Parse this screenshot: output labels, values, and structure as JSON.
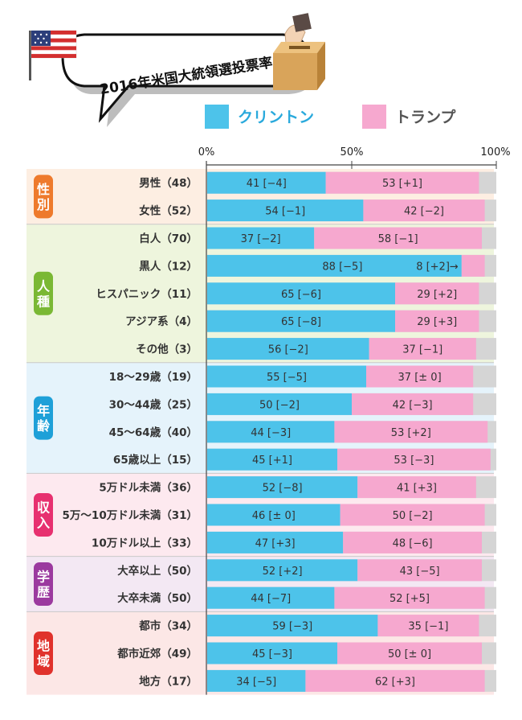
{
  "title": "2016年米国大統領選投票率",
  "legend": [
    {
      "name": "クリントン",
      "color": "#4dc3ea"
    },
    {
      "name": "トランプ",
      "color": "#f6a8cf"
    }
  ],
  "colors": {
    "clinton": "#4dc3ea",
    "trump": "#f6a8cf",
    "other": "#d5d5d5",
    "legend_clinton_text": "#29a9dc",
    "legend_trump_text": "#555555"
  },
  "chart_data": {
    "type": "bar",
    "orientation": "horizontal",
    "stacked": true,
    "title": "2016年米国大統領選投票率",
    "xlim": [
      0,
      100
    ],
    "xticks": [
      "0%",
      "50%",
      "100%"
    ],
    "groups": [
      {
        "name": "性別",
        "color": "#ee7a2c",
        "bg": "#fdeee2",
        "rows": [
          {
            "label": "男性（48）",
            "clinton": 41,
            "trump": 53,
            "clinton_label": "41 [−4]",
            "trump_label": "53 [+1]"
          },
          {
            "label": "女性（52）",
            "clinton": 54,
            "trump": 42,
            "clinton_label": "54 [−1]",
            "trump_label": "42 [−2]"
          }
        ]
      },
      {
        "name": "人種",
        "color": "#7ab834",
        "bg": "#eef5dd",
        "rows": [
          {
            "label": "白人（70）",
            "clinton": 37,
            "trump": 58,
            "clinton_label": "37 [−2]",
            "trump_label": "58 [−1]"
          },
          {
            "label": "黒人（12）",
            "clinton": 88,
            "trump": 8,
            "clinton_label": "88 [−5]",
            "trump_label": "8 [+2]→"
          },
          {
            "label": "ヒスパニック（11）",
            "clinton": 65,
            "trump": 29,
            "clinton_label": "65 [−6]",
            "trump_label": "29 [+2]"
          },
          {
            "label": "アジア系（4）",
            "clinton": 65,
            "trump": 29,
            "clinton_label": "65 [−8]",
            "trump_label": "29 [+3]"
          },
          {
            "label": "その他（3）",
            "clinton": 56,
            "trump": 37,
            "clinton_label": "56 [−2]",
            "trump_label": "37 [−1]"
          }
        ]
      },
      {
        "name": "年齢",
        "color": "#1ea0d8",
        "bg": "#e5f3fb",
        "rows": [
          {
            "label": "18～29歳（19）",
            "clinton": 55,
            "trump": 37,
            "clinton_label": "55 [−5]",
            "trump_label": "37 [± 0]"
          },
          {
            "label": "30～44歳（25）",
            "clinton": 50,
            "trump": 42,
            "clinton_label": "50 [−2]",
            "trump_label": "42 [−3]"
          },
          {
            "label": "45～64歳（40）",
            "clinton": 44,
            "trump": 53,
            "clinton_label": "44 [−3]",
            "trump_label": "53 [+2]"
          },
          {
            "label": "65歳以上（15）",
            "clinton": 45,
            "trump": 53,
            "clinton_label": "45 [+1]",
            "trump_label": "53 [−3]"
          }
        ]
      },
      {
        "name": "収入",
        "color": "#e7306f",
        "bg": "#fde9ef",
        "rows": [
          {
            "label": "5万ドル未満（36）",
            "clinton": 52,
            "trump": 41,
            "clinton_label": "52 [−8]",
            "trump_label": "41 [+3]"
          },
          {
            "label": "5万～10万ドル未満（31）",
            "clinton": 46,
            "trump": 50,
            "clinton_label": "46 [± 0]",
            "trump_label": "50 [−2]"
          },
          {
            "label": "10万ドル以上（33）",
            "clinton": 47,
            "trump": 48,
            "clinton_label": "47 [+3]",
            "trump_label": "48 [−6]"
          }
        ]
      },
      {
        "name": "学歴",
        "color": "#9b3a9f",
        "bg": "#f3e8f3",
        "rows": [
          {
            "label": "大卒以上（50）",
            "clinton": 52,
            "trump": 43,
            "clinton_label": "52 [+2]",
            "trump_label": "43 [−5]"
          },
          {
            "label": "大卒未満（50）",
            "clinton": 44,
            "trump": 52,
            "clinton_label": "44 [−7]",
            "trump_label": "52 [+5]"
          }
        ]
      },
      {
        "name": "地域",
        "color": "#e0322c",
        "bg": "#fce7e6",
        "rows": [
          {
            "label": "都市（34）",
            "clinton": 59,
            "trump": 35,
            "clinton_label": "59 [−3]",
            "trump_label": "35 [−1]"
          },
          {
            "label": "都市近郊（49）",
            "clinton": 45,
            "trump": 50,
            "clinton_label": "45 [−3]",
            "trump_label": "50 [± 0]"
          },
          {
            "label": "地方（17）",
            "clinton": 34,
            "trump": 62,
            "clinton_label": "34 [−5]",
            "trump_label": "62 [+3]"
          }
        ]
      }
    ]
  }
}
